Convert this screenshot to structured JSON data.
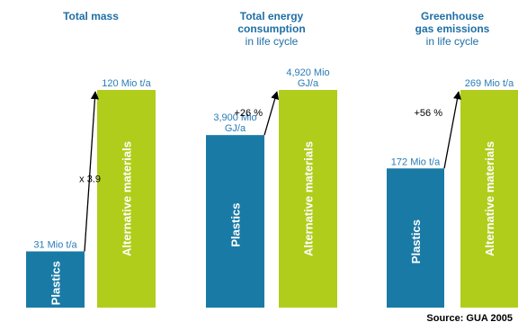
{
  "colors": {
    "plastics": "#1a7aa6",
    "alternative": "#b1cd1c",
    "title": "#1f6fa6",
    "value_label": "#2a7cb6",
    "bar_text": "#ffffff",
    "arrow": "#000000",
    "source": "#000000"
  },
  "chart_data": [
    {
      "type": "bar",
      "title_lines": [
        "Total mass"
      ],
      "subtitle_lines": [],
      "categories": [
        "Plastics",
        "Alternative materials"
      ],
      "values": [
        31,
        120
      ],
      "unit": "Mio t/a",
      "value_labels": [
        [
          "31 Mio t/a"
        ],
        [
          "120 Mio t/a"
        ]
      ],
      "change_label": "x 3.9"
    },
    {
      "type": "bar",
      "title_lines": [
        "Total energy",
        "consumption"
      ],
      "subtitle_lines": [
        "in life cycle"
      ],
      "categories": [
        "Plastics",
        "Alternative materials"
      ],
      "values": [
        3900,
        4920
      ],
      "unit": "Mio GJ/a",
      "value_labels": [
        [
          "3,900 Mio",
          "GJ/a"
        ],
        [
          "4,920 Mio",
          "GJ/a"
        ]
      ],
      "change_label": "+26 %"
    },
    {
      "type": "bar",
      "title_lines": [
        "Greenhouse",
        "gas emissions"
      ],
      "subtitle_lines": [
        "in life cycle"
      ],
      "categories": [
        "Plastics",
        "Alternative materials"
      ],
      "values": [
        172,
        269
      ],
      "unit": "Mio t/a",
      "value_labels": [
        [
          "172 Mio t/a"
        ],
        [
          "269 Mio t/a"
        ]
      ],
      "change_label": "+56 %"
    }
  ],
  "source": "Source: GUA 2005"
}
